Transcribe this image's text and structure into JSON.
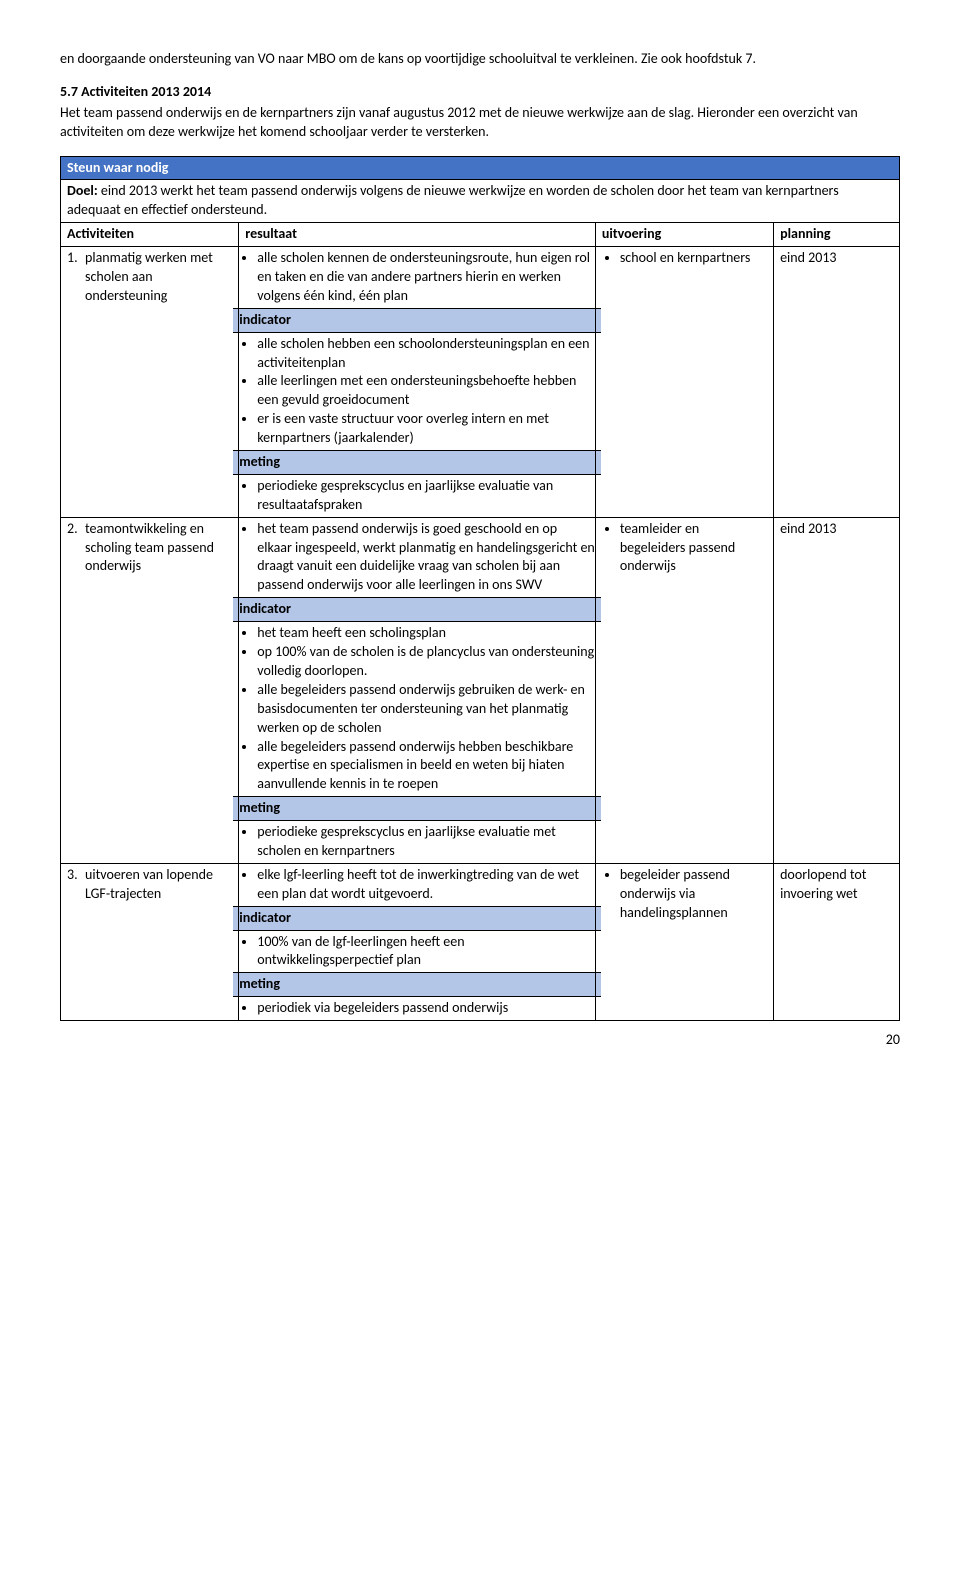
{
  "intro_para": "en doorgaande ondersteuning van VO naar MBO om de kans op voortijdige schooluitval te verkleinen. Zie ook hoofdstuk 7.",
  "section_heading": "5.7 Activiteiten 2013 2014",
  "section_body": "Het team passend onderwijs en de kernpartners zijn vanaf augustus 2012 met de nieuwe werkwijze aan de slag. Hieronder een overzicht van activiteiten om deze werkwijze het komend schooljaar verder te versterken.",
  "table": {
    "title": "Steun waar nodig",
    "doel_label": "Doel:",
    "doel_text": " eind 2013 werkt het team passend onderwijs volgens de nieuwe werkwijze en worden de scholen door het team van kernpartners adequaat en effectief ondersteund.",
    "columns": {
      "activiteiten": "Activiteiten",
      "resultaat": "resultaat",
      "uitvoering": "uitvoering",
      "planning": "planning"
    },
    "subheaders": {
      "indicator": "indicator",
      "meting": "meting"
    },
    "rows": [
      {
        "num": "1.",
        "act": "planmatig werken met scholen aan ondersteuning",
        "res_main": [
          "alle scholen kennen de ondersteuningsroute, hun eigen rol en taken en die van andere partners hierin en werken volgens één kind, één plan"
        ],
        "indicator": [
          "alle scholen hebben een schoolondersteuningsplan en een activiteitenplan",
          "alle leerlingen met een ondersteuningsbehoefte hebben een gevuld groeidocument",
          "er is een vaste structuur voor overleg intern en met kernpartners (jaarkalender)"
        ],
        "meting": [
          "periodieke gesprekscyclus en jaarlijkse evaluatie van resultaatafspraken"
        ],
        "uit": [
          "school en kernpartners"
        ],
        "plan": "eind 2013"
      },
      {
        "num": "2.",
        "act": "teamontwikkeling en scholing team passend onderwijs",
        "res_main": [
          "het team passend onderwijs is goed geschoold en op elkaar ingespeeld, werkt planmatig en handelingsgericht en draagt vanuit een duidelijke vraag van scholen bij aan passend onderwijs voor alle leerlingen in ons SWV"
        ],
        "indicator": [
          "het team heeft een scholingsplan",
          "op 100% van de scholen is de plancyclus van ondersteuning volledig doorlopen.",
          "alle begeleiders passend onderwijs gebruiken de werk- en basisdocumenten ter ondersteuning van het planmatig werken op de scholen",
          "alle begeleiders passend onderwijs hebben beschikbare expertise en specialismen in beeld en weten bij hiaten aanvullende kennis in te roepen"
        ],
        "meting": [
          "periodieke gesprekscyclus en jaarlijkse evaluatie met scholen en kernpartners"
        ],
        "uit": [
          "teamleider en begeleiders passend onderwijs"
        ],
        "plan": "eind 2013"
      },
      {
        "num": "3.",
        "act": "uitvoeren van lopende LGF-trajecten",
        "res_main": [
          "elke lgf-leerling heeft tot de inwerkingtreding van de wet een plan dat wordt uitgevoerd."
        ],
        "indicator": [
          "100% van de lgf-leerlingen heeft een ontwikkelingsperpectief plan"
        ],
        "meting": [
          "periodiek via begeleiders passend onderwijs"
        ],
        "uit": [
          "begeleider passend onderwijs via handelingsplannen"
        ],
        "plan": "doorlopend tot invoering wet"
      }
    ]
  },
  "page_num": "20"
}
